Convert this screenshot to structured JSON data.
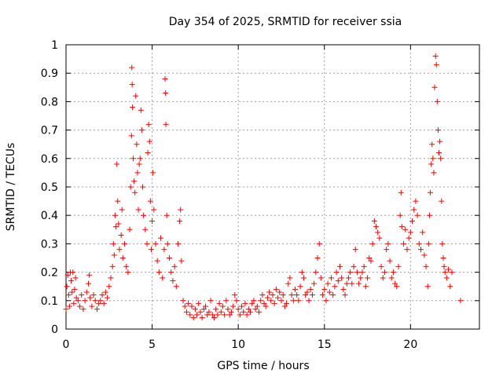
{
  "chart_data": {
    "type": "scatter",
    "title": "Day 354 of 2025, SRMTID for receiver ssia",
    "xlabel": "GPS time / hours",
    "ylabel": "SRMTID / TECUs",
    "xlim": [
      0,
      24
    ],
    "ylim": [
      0,
      1
    ],
    "x_ticks": [
      0,
      5,
      10,
      15,
      20
    ],
    "x_tick_labels": [
      "0",
      "5",
      "10",
      "15",
      "20"
    ],
    "y_ticks": [
      0,
      0.1,
      0.2,
      0.3,
      0.4,
      0.5,
      0.6,
      0.7,
      0.8,
      0.9,
      1
    ],
    "y_tick_labels": [
      "0",
      "0.1",
      "0.2",
      "0.3",
      "0.4",
      "0.5",
      "0.6",
      "0.7",
      "0.8",
      "0.9",
      "1"
    ],
    "grid": true,
    "marker": "+",
    "color": "#ff0000",
    "series": [
      {
        "name": "SRMTID",
        "points": [
          [
            0.0,
            0.07
          ],
          [
            0.05,
            0.15
          ],
          [
            0.1,
            0.19
          ],
          [
            0.15,
            0.12
          ],
          [
            0.2,
            0.08
          ],
          [
            0.25,
            0.2
          ],
          [
            0.3,
            0.17
          ],
          [
            0.35,
            0.13
          ],
          [
            0.4,
            0.2
          ],
          [
            0.45,
            0.09
          ],
          [
            0.5,
            0.14
          ],
          [
            0.55,
            0.18
          ],
          [
            0.6,
            0.11
          ],
          [
            0.7,
            0.1
          ],
          [
            0.8,
            0.08
          ],
          [
            0.9,
            0.12
          ],
          [
            1.0,
            0.07
          ],
          [
            1.1,
            0.1
          ],
          [
            1.2,
            0.13
          ],
          [
            1.3,
            0.16
          ],
          [
            1.35,
            0.19
          ],
          [
            1.4,
            0.11
          ],
          [
            1.5,
            0.08
          ],
          [
            1.6,
            0.12
          ],
          [
            1.7,
            0.1
          ],
          [
            1.8,
            0.07
          ],
          [
            1.9,
            0.09
          ],
          [
            2.0,
            0.1
          ],
          [
            2.1,
            0.12
          ],
          [
            2.2,
            0.09
          ],
          [
            2.3,
            0.13
          ],
          [
            2.4,
            0.11
          ],
          [
            2.5,
            0.15
          ],
          [
            2.6,
            0.18
          ],
          [
            2.7,
            0.22
          ],
          [
            2.75,
            0.3
          ],
          [
            2.8,
            0.26
          ],
          [
            2.85,
            0.4
          ],
          [
            2.9,
            0.36
          ],
          [
            2.95,
            0.58
          ],
          [
            3.0,
            0.45
          ],
          [
            3.05,
            0.37
          ],
          [
            3.1,
            0.28
          ],
          [
            3.2,
            0.33
          ],
          [
            3.25,
            0.42
          ],
          [
            3.3,
            0.25
          ],
          [
            3.4,
            0.3
          ],
          [
            3.5,
            0.22
          ],
          [
            3.6,
            0.2
          ],
          [
            3.7,
            0.35
          ],
          [
            3.75,
            0.5
          ],
          [
            3.8,
            0.68
          ],
          [
            3.82,
            0.92
          ],
          [
            3.84,
            0.86
          ],
          [
            3.86,
            0.78
          ],
          [
            3.9,
            0.6
          ],
          [
            3.95,
            0.52
          ],
          [
            4.0,
            0.48
          ],
          [
            4.05,
            0.82
          ],
          [
            4.1,
            0.65
          ],
          [
            4.15,
            0.55
          ],
          [
            4.2,
            0.42
          ],
          [
            4.25,
            0.58
          ],
          [
            4.3,
            0.6
          ],
          [
            4.35,
            0.77
          ],
          [
            4.4,
            0.7
          ],
          [
            4.45,
            0.5
          ],
          [
            4.5,
            0.4
          ],
          [
            4.6,
            0.35
          ],
          [
            4.7,
            0.3
          ],
          [
            4.75,
            0.62
          ],
          [
            4.8,
            0.72
          ],
          [
            4.85,
            0.66
          ],
          [
            4.9,
            0.45
          ],
          [
            4.95,
            0.28
          ],
          [
            5.0,
            0.38
          ],
          [
            5.05,
            0.55
          ],
          [
            5.1,
            0.42
          ],
          [
            5.2,
            0.3
          ],
          [
            5.3,
            0.24
          ],
          [
            5.4,
            0.2
          ],
          [
            5.5,
            0.32
          ],
          [
            5.6,
            0.18
          ],
          [
            5.7,
            0.28
          ],
          [
            5.75,
            0.88
          ],
          [
            5.78,
            0.83
          ],
          [
            5.8,
            0.72
          ],
          [
            5.85,
            0.4
          ],
          [
            5.9,
            0.3
          ],
          [
            6.0,
            0.25
          ],
          [
            6.1,
            0.2
          ],
          [
            6.2,
            0.17
          ],
          [
            6.3,
            0.22
          ],
          [
            6.4,
            0.15
          ],
          [
            6.5,
            0.3
          ],
          [
            6.6,
            0.38
          ],
          [
            6.65,
            0.42
          ],
          [
            6.7,
            0.24
          ],
          [
            6.8,
            0.1
          ],
          [
            6.9,
            0.08
          ],
          [
            7.0,
            0.06
          ],
          [
            7.1,
            0.09
          ],
          [
            7.2,
            0.05
          ],
          [
            7.3,
            0.08
          ],
          [
            7.4,
            0.04
          ],
          [
            7.5,
            0.07
          ],
          [
            7.6,
            0.05
          ],
          [
            7.7,
            0.09
          ],
          [
            7.8,
            0.06
          ],
          [
            7.9,
            0.04
          ],
          [
            8.0,
            0.07
          ],
          [
            8.1,
            0.08
          ],
          [
            8.2,
            0.05
          ],
          [
            8.3,
            0.06
          ],
          [
            8.4,
            0.1
          ],
          [
            8.5,
            0.05
          ],
          [
            8.6,
            0.04
          ],
          [
            8.7,
            0.07
          ],
          [
            8.8,
            0.05
          ],
          [
            8.9,
            0.09
          ],
          [
            9.0,
            0.06
          ],
          [
            9.1,
            0.08
          ],
          [
            9.2,
            0.05
          ],
          [
            9.3,
            0.1
          ],
          [
            9.4,
            0.07
          ],
          [
            9.5,
            0.05
          ],
          [
            9.6,
            0.06
          ],
          [
            9.7,
            0.08
          ],
          [
            9.8,
            0.12
          ],
          [
            9.9,
            0.1
          ],
          [
            10.0,
            0.07
          ],
          [
            10.1,
            0.05
          ],
          [
            10.2,
            0.08
          ],
          [
            10.3,
            0.06
          ],
          [
            10.4,
            0.09
          ],
          [
            10.5,
            0.05
          ],
          [
            10.6,
            0.07
          ],
          [
            10.7,
            0.06
          ],
          [
            10.8,
            0.09
          ],
          [
            10.9,
            0.1
          ],
          [
            11.0,
            0.07
          ],
          [
            11.1,
            0.08
          ],
          [
            11.2,
            0.06
          ],
          [
            11.3,
            0.1
          ],
          [
            11.4,
            0.12
          ],
          [
            11.5,
            0.09
          ],
          [
            11.6,
            0.08
          ],
          [
            11.7,
            0.11
          ],
          [
            11.8,
            0.13
          ],
          [
            11.9,
            0.1
          ],
          [
            12.0,
            0.12
          ],
          [
            12.1,
            0.09
          ],
          [
            12.2,
            0.14
          ],
          [
            12.3,
            0.11
          ],
          [
            12.4,
            0.13
          ],
          [
            12.5,
            0.1
          ],
          [
            12.6,
            0.12
          ],
          [
            12.7,
            0.08
          ],
          [
            12.8,
            0.09
          ],
          [
            12.9,
            0.16
          ],
          [
            13.0,
            0.18
          ],
          [
            13.1,
            0.12
          ],
          [
            13.2,
            0.1
          ],
          [
            13.3,
            0.14
          ],
          [
            13.4,
            0.12
          ],
          [
            13.5,
            0.1
          ],
          [
            13.6,
            0.15
          ],
          [
            13.7,
            0.2
          ],
          [
            13.8,
            0.18
          ],
          [
            13.9,
            0.12
          ],
          [
            14.0,
            0.13
          ],
          [
            14.1,
            0.1
          ],
          [
            14.2,
            0.14
          ],
          [
            14.3,
            0.12
          ],
          [
            14.4,
            0.16
          ],
          [
            14.5,
            0.2
          ],
          [
            14.6,
            0.25
          ],
          [
            14.7,
            0.3
          ],
          [
            14.8,
            0.18
          ],
          [
            14.9,
            0.12
          ],
          [
            15.0,
            0.14
          ],
          [
            15.1,
            0.1
          ],
          [
            15.2,
            0.16
          ],
          [
            15.3,
            0.13
          ],
          [
            15.4,
            0.18
          ],
          [
            15.5,
            0.12
          ],
          [
            15.6,
            0.15
          ],
          [
            15.7,
            0.2
          ],
          [
            15.8,
            0.17
          ],
          [
            15.9,
            0.22
          ],
          [
            16.0,
            0.18
          ],
          [
            16.1,
            0.14
          ],
          [
            16.2,
            0.12
          ],
          [
            16.3,
            0.16
          ],
          [
            16.4,
            0.18
          ],
          [
            16.5,
            0.2
          ],
          [
            16.6,
            0.16
          ],
          [
            16.7,
            0.22
          ],
          [
            16.8,
            0.28
          ],
          [
            16.9,
            0.2
          ],
          [
            17.0,
            0.16
          ],
          [
            17.1,
            0.18
          ],
          [
            17.2,
            0.2
          ],
          [
            17.3,
            0.22
          ],
          [
            17.4,
            0.15
          ],
          [
            17.5,
            0.18
          ],
          [
            17.6,
            0.25
          ],
          [
            17.7,
            0.24
          ],
          [
            17.8,
            0.3
          ],
          [
            17.9,
            0.38
          ],
          [
            18.0,
            0.36
          ],
          [
            18.1,
            0.34
          ],
          [
            18.2,
            0.32
          ],
          [
            18.3,
            0.22
          ],
          [
            18.4,
            0.18
          ],
          [
            18.5,
            0.2
          ],
          [
            18.6,
            0.28
          ],
          [
            18.7,
            0.3
          ],
          [
            18.8,
            0.24
          ],
          [
            18.9,
            0.18
          ],
          [
            19.0,
            0.2
          ],
          [
            19.1,
            0.16
          ],
          [
            19.2,
            0.15
          ],
          [
            19.3,
            0.22
          ],
          [
            19.4,
            0.4
          ],
          [
            19.45,
            0.48
          ],
          [
            19.5,
            0.36
          ],
          [
            19.6,
            0.3
          ],
          [
            19.7,
            0.35
          ],
          [
            19.8,
            0.28
          ],
          [
            19.9,
            0.32
          ],
          [
            20.0,
            0.34
          ],
          [
            20.1,
            0.38
          ],
          [
            20.2,
            0.42
          ],
          [
            20.3,
            0.45
          ],
          [
            20.4,
            0.4
          ],
          [
            20.5,
            0.3
          ],
          [
            20.6,
            0.28
          ],
          [
            20.7,
            0.34
          ],
          [
            20.8,
            0.26
          ],
          [
            20.9,
            0.22
          ],
          [
            21.0,
            0.15
          ],
          [
            21.05,
            0.3
          ],
          [
            21.1,
            0.4
          ],
          [
            21.15,
            0.48
          ],
          [
            21.2,
            0.58
          ],
          [
            21.25,
            0.65
          ],
          [
            21.3,
            0.6
          ],
          [
            21.35,
            0.55
          ],
          [
            21.4,
            0.85
          ],
          [
            21.45,
            0.96
          ],
          [
            21.5,
            0.93
          ],
          [
            21.55,
            0.8
          ],
          [
            21.6,
            0.7
          ],
          [
            21.65,
            0.62
          ],
          [
            21.7,
            0.66
          ],
          [
            21.75,
            0.6
          ],
          [
            21.8,
            0.45
          ],
          [
            21.85,
            0.3
          ],
          [
            21.9,
            0.25
          ],
          [
            21.95,
            0.22
          ],
          [
            22.0,
            0.2
          ],
          [
            22.1,
            0.18
          ],
          [
            22.2,
            0.21
          ],
          [
            22.3,
            0.15
          ],
          [
            22.4,
            0.2
          ],
          [
            22.9,
            0.1
          ]
        ]
      }
    ]
  }
}
